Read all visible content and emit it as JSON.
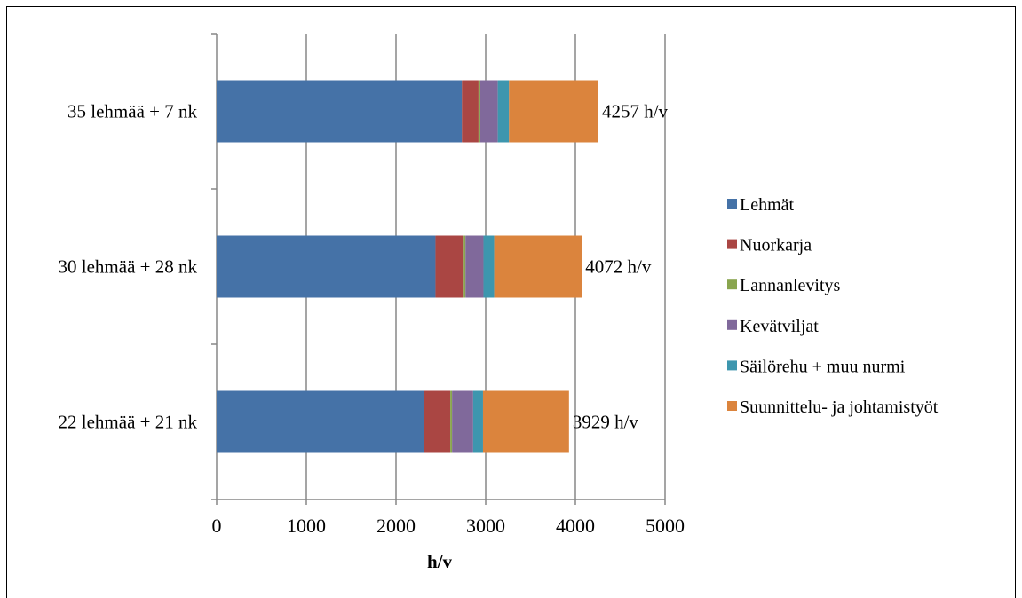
{
  "chart_data": {
    "type": "bar",
    "orientation": "horizontal",
    "stacked": true,
    "categories": [
      "35 lehmää + 7 nk",
      "30 lehmää + 28 nk",
      "22 lehmää + 21 nk"
    ],
    "series": [
      {
        "name": "Lehmät",
        "color": "#4572A7",
        "values": [
          2735,
          2440,
          2315
        ]
      },
      {
        "name": "Nuorkarja",
        "color": "#AA4643",
        "values": [
          185,
          315,
          290
        ]
      },
      {
        "name": "Lannanlevitys",
        "color": "#89A54E",
        "values": [
          20,
          20,
          20
        ]
      },
      {
        "name": "Kevätviljat",
        "color": "#80699B",
        "values": [
          195,
          200,
          235
        ]
      },
      {
        "name": "Säilörehu + muu nurmi",
        "color": "#3D96AE",
        "values": [
          125,
          120,
          110
        ]
      },
      {
        "name": "Suunnittelu- ja johtamistyöt",
        "color": "#DB843D",
        "values": [
          997,
          977,
          959
        ]
      }
    ],
    "totals": [
      "4257 h/v",
      "4072 h/v",
      "3929 h/v"
    ],
    "xlabel": "h/v",
    "ylabel": "",
    "xlim": [
      0,
      5000
    ],
    "xticks": [
      "0",
      "1000",
      "2000",
      "3000",
      "4000",
      "5000"
    ],
    "grid": "vertical",
    "legend_position": "right"
  }
}
